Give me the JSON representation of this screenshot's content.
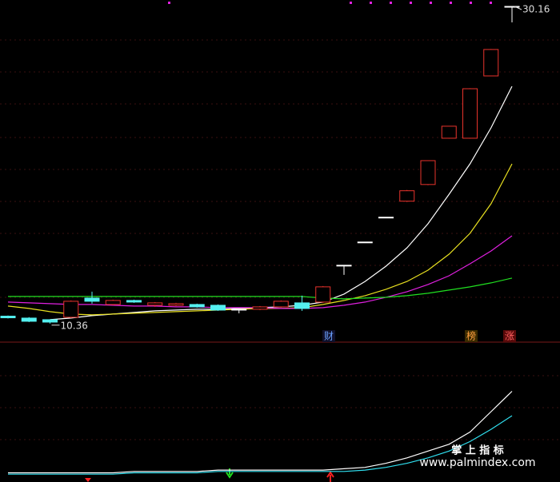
{
  "chart_data": [
    {
      "type": "candlestick",
      "categories": [
        null,
        null,
        null,
        null,
        null,
        null,
        null,
        null,
        null,
        null,
        null,
        null,
        null,
        null,
        null,
        null,
        null,
        null,
        null,
        null,
        null,
        null,
        null,
        null,
        null
      ],
      "open": [
        10.82,
        10.7,
        10.6,
        10.75,
        11.95,
        11.55,
        11.8,
        11.5,
        11.5,
        11.55,
        11.5,
        11.25,
        11.25,
        11.4,
        11.65,
        11.7,
        14.0,
        15.45,
        17.0,
        18.0,
        19.04,
        21.93,
        21.93,
        25.82,
        30.16
      ],
      "close": [
        10.72,
        10.5,
        10.45,
        11.75,
        11.75,
        11.8,
        11.7,
        11.65,
        11.6,
        11.4,
        11.2,
        11.25,
        11.4,
        11.75,
        11.3,
        12.65,
        14.0,
        15.45,
        17.0,
        18.65,
        20.53,
        22.68,
        25.02,
        27.47,
        30.16
      ],
      "high": [
        10.86,
        10.76,
        10.62,
        11.8,
        12.35,
        11.85,
        11.85,
        11.7,
        11.65,
        11.6,
        11.55,
        11.3,
        11.45,
        11.8,
        12.1,
        12.7,
        14.0,
        15.45,
        17.0,
        18.7,
        20.55,
        22.7,
        25.05,
        27.5,
        30.16
      ],
      "low": [
        10.68,
        10.45,
        10.36,
        10.7,
        11.6,
        11.5,
        11.65,
        11.4,
        11.45,
        11.35,
        11.15,
        11.0,
        11.2,
        11.35,
        11.15,
        11.65,
        13.4,
        15.45,
        17.0,
        17.95,
        19.0,
        21.9,
        21.9,
        25.8,
        29.16
      ],
      "up_color": "#e8332c",
      "down_color": "#54f0f0",
      "flat_color": "#ffffff",
      "ylim": [
        9.2,
        30.56
      ],
      "series": [
        {
          "color": "#ffffff",
          "values": [
            null,
            null,
            10.6,
            10.7,
            10.85,
            10.95,
            11.05,
            11.15,
            11.2,
            11.25,
            11.25,
            11.3,
            11.35,
            11.4,
            11.5,
            11.7,
            12.2,
            12.99,
            13.94,
            15.09,
            16.59,
            18.43,
            20.33,
            22.58,
            25.17
          ]
        },
        {
          "color": "#e8e020",
          "values": [
            11.45,
            11.3,
            11.1,
            10.95,
            10.9,
            10.95,
            11.0,
            11.05,
            11.1,
            11.15,
            11.2,
            11.25,
            11.3,
            11.3,
            11.35,
            11.55,
            11.8,
            12.1,
            12.5,
            12.99,
            13.69,
            14.69,
            15.99,
            17.84,
            20.33
          ]
        },
        {
          "color": "#e020e0",
          "values": [
            11.7,
            11.65,
            11.6,
            11.55,
            11.55,
            11.5,
            11.45,
            11.45,
            11.4,
            11.4,
            11.35,
            11.35,
            11.35,
            11.3,
            11.3,
            11.35,
            11.5,
            11.7,
            12.0,
            12.35,
            12.8,
            13.34,
            14.09,
            14.89,
            15.84
          ]
        },
        {
          "color": "#20e020",
          "values": [
            12.05,
            12.05,
            12.05,
            12.05,
            12.05,
            12.05,
            12.05,
            12.05,
            12.05,
            12.05,
            12.05,
            12.05,
            12.05,
            12.05,
            12.05,
            11.95,
            11.9,
            11.95,
            12.0,
            12.1,
            12.25,
            12.45,
            12.65,
            12.9,
            13.2
          ]
        }
      ],
      "annotations": [
        "财",
        "榜",
        "涨"
      ]
    },
    {
      "type": "line",
      "ylim": [
        0,
        100
      ],
      "series": [
        {
          "color": "#ffffff",
          "values": [
            5,
            5,
            5,
            5,
            5,
            5,
            6,
            6,
            6,
            6,
            7,
            7,
            7,
            7,
            7,
            7,
            8,
            9,
            12,
            16,
            21,
            26,
            35,
            50,
            65
          ]
        },
        {
          "color": "#30e0f0",
          "values": [
            4,
            4,
            4,
            4,
            4,
            4,
            5,
            5,
            5,
            5,
            6,
            6,
            6,
            6,
            6,
            6,
            6,
            7,
            9,
            12,
            16,
            21,
            28,
            37,
            47
          ]
        }
      ],
      "watermark": [
        "掌 上 指 标",
        "www.palmindex.com"
      ]
    }
  ]
}
